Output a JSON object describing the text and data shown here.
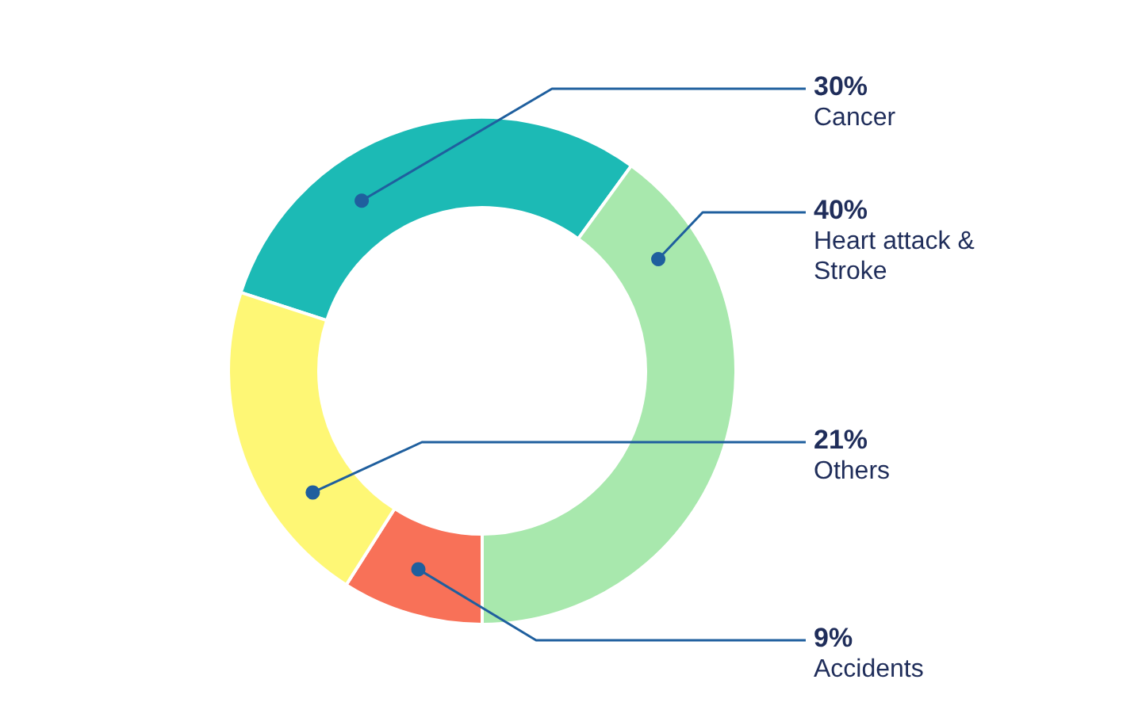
{
  "chart_data": {
    "type": "donut",
    "categories": [
      "Cancer",
      "Heart attack &\nStroke",
      "Accidents",
      "Others"
    ],
    "values": [
      30,
      40,
      9,
      21
    ],
    "value_labels": [
      "30%",
      "40%",
      "9%",
      "21%"
    ],
    "colors": [
      "#1cbab5",
      "#a8e8ad",
      "#f87158",
      "#fef775"
    ],
    "legend": false
  }
}
